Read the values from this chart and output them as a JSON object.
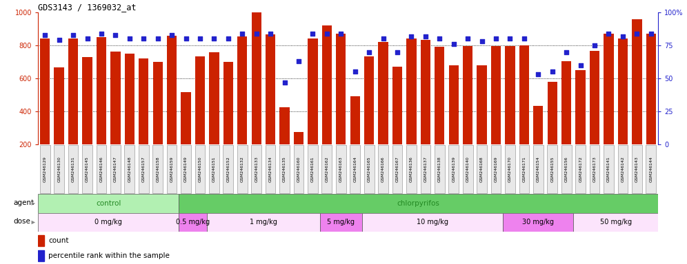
{
  "title": "GDS3143 / 1369032_at",
  "samples": [
    "GSM246129",
    "GSM246130",
    "GSM246131",
    "GSM246145",
    "GSM246146",
    "GSM246147",
    "GSM246148",
    "GSM246157",
    "GSM246158",
    "GSM246159",
    "GSM246149",
    "GSM246150",
    "GSM246151",
    "GSM246152",
    "GSM246132",
    "GSM246133",
    "GSM246134",
    "GSM246135",
    "GSM246160",
    "GSM246161",
    "GSM246162",
    "GSM246163",
    "GSM246164",
    "GSM246165",
    "GSM246166",
    "GSM246167",
    "GSM246136",
    "GSM246137",
    "GSM246138",
    "GSM246139",
    "GSM246140",
    "GSM246168",
    "GSM246169",
    "GSM246170",
    "GSM246171",
    "GSM246154",
    "GSM246155",
    "GSM246156",
    "GSM246172",
    "GSM246173",
    "GSM246141",
    "GSM246142",
    "GSM246143",
    "GSM246144"
  ],
  "counts": [
    840,
    665,
    840,
    728,
    848,
    762,
    752,
    720,
    700,
    860,
    515,
    735,
    760,
    700,
    855,
    1000,
    865,
    425,
    275,
    840,
    920,
    870,
    490,
    735,
    820,
    670,
    840,
    835,
    790,
    680,
    795,
    680,
    795,
    795,
    800,
    435,
    580,
    706,
    650,
    765,
    870,
    840,
    960,
    870
  ],
  "percentiles": [
    83,
    79,
    83,
    80,
    84,
    83,
    80,
    80,
    80,
    83,
    80,
    80,
    80,
    80,
    84,
    84,
    84,
    47,
    63,
    84,
    84,
    84,
    55,
    70,
    80,
    70,
    82,
    82,
    80,
    76,
    80,
    78,
    80,
    80,
    80,
    53,
    55,
    70,
    60,
    75,
    84,
    82,
    84,
    84
  ],
  "agent_groups": [
    {
      "label": "control",
      "start": 0,
      "end": 10,
      "color": "#b2f0b2"
    },
    {
      "label": "chlorpyrifos",
      "start": 10,
      "end": 44,
      "color": "#66cc66"
    }
  ],
  "dose_groups": [
    {
      "label": "0 mg/kg",
      "start": 0,
      "end": 10,
      "color": "#fce4fc"
    },
    {
      "label": "0.5 mg/kg",
      "start": 10,
      "end": 12,
      "color": "#ee82ee"
    },
    {
      "label": "1 mg/kg",
      "start": 12,
      "end": 20,
      "color": "#fce4fc"
    },
    {
      "label": "5 mg/kg",
      "start": 20,
      "end": 23,
      "color": "#ee82ee"
    },
    {
      "label": "10 mg/kg",
      "start": 23,
      "end": 33,
      "color": "#fce4fc"
    },
    {
      "label": "30 mg/kg",
      "start": 33,
      "end": 38,
      "color": "#ee82ee"
    },
    {
      "label": "50 mg/kg",
      "start": 38,
      "end": 44,
      "color": "#fce4fc"
    }
  ],
  "bar_color": "#cc2200",
  "dot_color": "#2222cc",
  "ylim_left": [
    200,
    1000
  ],
  "ylim_right": [
    0,
    100
  ],
  "yticks_left": [
    200,
    400,
    600,
    800,
    1000
  ],
  "yticks_right": [
    0,
    25,
    50,
    75,
    100
  ],
  "grid_values": [
    400,
    600,
    800
  ],
  "background_color": "#ffffff",
  "plot_bg_color": "#ffffff"
}
